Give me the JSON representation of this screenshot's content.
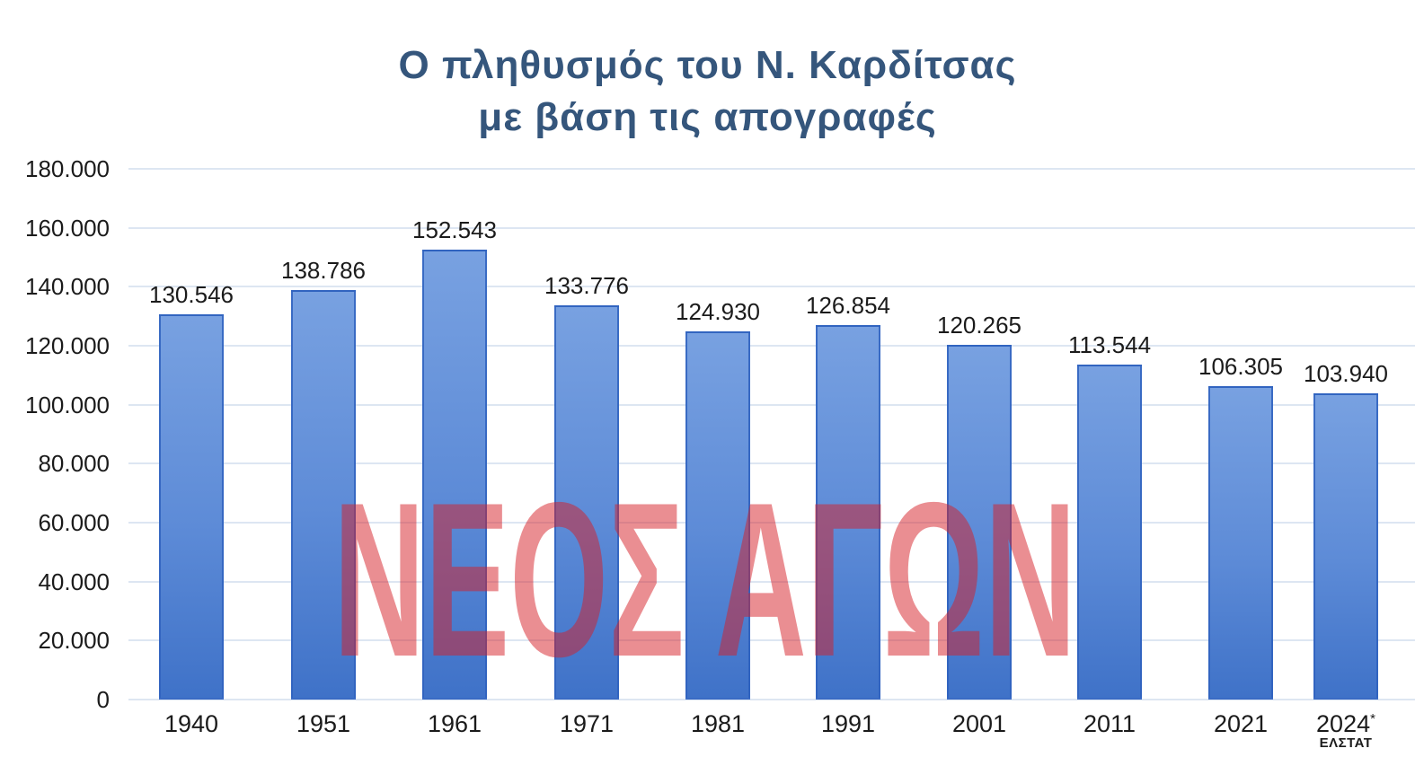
{
  "chart_data": {
    "type": "bar",
    "title_line1": "Ο πληθυσμός του Ν. Καρδίτσας",
    "title_line2": "με βάση τις απογραφές",
    "categories": [
      "1940",
      "1951",
      "1961",
      "1971",
      "1981",
      "1991",
      "2001",
      "2011",
      "2021",
      "2024*"
    ],
    "values": [
      130546,
      138786,
      152543,
      133776,
      124930,
      126854,
      120265,
      113544,
      106305,
      103940
    ],
    "value_labels": [
      "130.546",
      "138.786",
      "152.543",
      "133.776",
      "124.930",
      "126.854",
      "120.265",
      "113.544",
      "106.305",
      "103.940"
    ],
    "footnote": {
      "category_index": 9,
      "label": "ΕΛΣΤΑΤ"
    },
    "xlabel": "",
    "ylabel": "",
    "ylim": [
      0,
      180000
    ],
    "ytick_step": 20000,
    "y_tick_labels": [
      "0",
      "20.000",
      "40.000",
      "60.000",
      "80.000",
      "100.000",
      "120.000",
      "140.000",
      "160.000",
      "180.000"
    ],
    "grid": true,
    "legend": "none",
    "watermark": "ΝΕΟΣ ΑΓΩΝ",
    "colors": {
      "bar_fill_light": "#78A1E1",
      "bar_fill_mid": "#5D8BD7",
      "bar_fill_dark": "#3F72C8",
      "bar_border": "#2F62BE",
      "gridline": "#DDE6F2",
      "title": "#35567C",
      "axis_text": "#1B1B1B",
      "watermark": "rgba(214,30,38,0.5)"
    }
  }
}
